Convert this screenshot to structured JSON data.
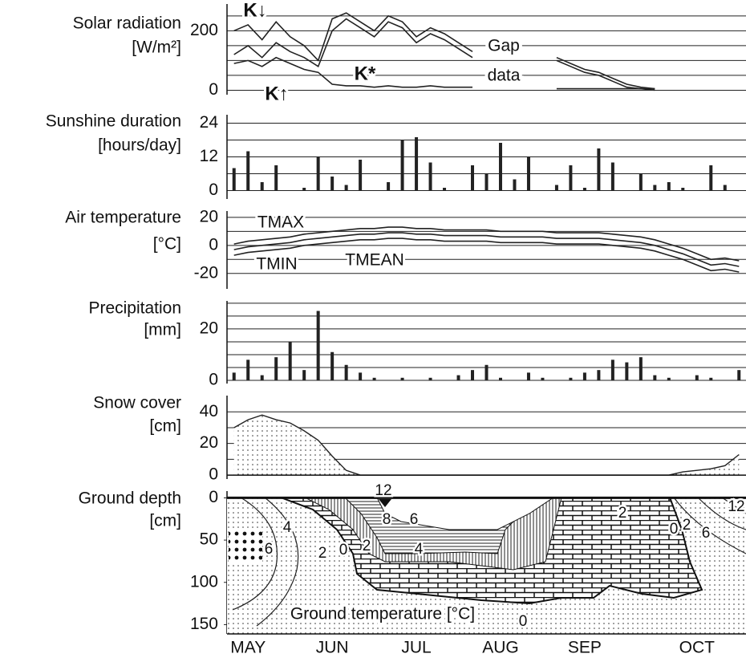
{
  "chart_data": [
    {
      "type": "line",
      "ylabel": [
        "Solar radiation",
        "[W/m²]"
      ],
      "ylim": [
        -15,
        290
      ],
      "yticks": [
        0,
        200
      ],
      "minor_grid": [
        50,
        100,
        150,
        250
      ],
      "annotations": [
        "Gap",
        "data"
      ],
      "series": [
        {
          "name": "K↓",
          "color": "#222222",
          "values": [
            200,
            220,
            170,
            230,
            180,
            150,
            100,
            240,
            260,
            230,
            200,
            250,
            230,
            180,
            210,
            190,
            160,
            130,
            null,
            null,
            null,
            null,
            null,
            110,
            90,
            70,
            60,
            40,
            20,
            10,
            5,
            null,
            null,
            null,
            null,
            null,
            null
          ]
        },
        {
          "name": "K*",
          "color": "#222222",
          "values": [
            120,
            150,
            110,
            160,
            130,
            110,
            80,
            200,
            240,
            210,
            180,
            230,
            210,
            160,
            190,
            170,
            140,
            110,
            null,
            null,
            null,
            null,
            null,
            100,
            80,
            60,
            50,
            30,
            10,
            5,
            0,
            null,
            null,
            null,
            null,
            null,
            null
          ]
        },
        {
          "name": "K↑",
          "color": "#222222",
          "values": [
            90,
            100,
            80,
            110,
            90,
            70,
            60,
            20,
            15,
            15,
            10,
            15,
            10,
            10,
            15,
            10,
            10,
            10,
            null,
            null,
            null,
            null,
            null,
            5,
            5,
            5,
            5,
            5,
            5,
            5,
            5,
            null,
            null,
            null,
            null,
            null,
            null
          ]
        }
      ]
    },
    {
      "type": "bar",
      "ylabel": [
        "Sunshine duration",
        "[hours/day]"
      ],
      "ylim": [
        -3,
        27
      ],
      "yticks": [
        0,
        12,
        24
      ],
      "minor_grid": [
        6,
        18
      ],
      "color": "#222222",
      "values": [
        8,
        14,
        3,
        9,
        0,
        1,
        12,
        5,
        2,
        11,
        0,
        3,
        18,
        19,
        10,
        1,
        0,
        9,
        6,
        17,
        4,
        12,
        0,
        2,
        9,
        1,
        15,
        10,
        0,
        6,
        2,
        3,
        1,
        0,
        9,
        2,
        0
      ]
    },
    {
      "type": "line",
      "ylabel": [
        "Air  temperature",
        "[°C]"
      ],
      "ylim": [
        -31,
        24.5
      ],
      "yticks": [
        20,
        0,
        -20
      ],
      "minor_grid": [
        10,
        -10
      ],
      "series": [
        {
          "name": "TMAX",
          "color": "#222222",
          "values": [
            1,
            3,
            4,
            5,
            6,
            8,
            9,
            10,
            11,
            12,
            12,
            13,
            13,
            12,
            12,
            11,
            11,
            11,
            11,
            10,
            10,
            10,
            10,
            9,
            9,
            9,
            9,
            8,
            7,
            6,
            4,
            1,
            -2,
            -6,
            -10,
            -9,
            -11
          ]
        },
        {
          "name": "TMIN",
          "color": "#222222",
          "values": [
            -7,
            -5,
            -4,
            -3,
            -2,
            0,
            1,
            2,
            3,
            4,
            4,
            5,
            5,
            4,
            4,
            3,
            3,
            3,
            3,
            2,
            2,
            2,
            2,
            1,
            1,
            1,
            1,
            0,
            -1,
            -2,
            -4,
            -7,
            -10,
            -14,
            -18,
            -17,
            -19
          ]
        },
        {
          "name": "TMEAN",
          "color": "#222222",
          "values": [
            -3,
            -1,
            0,
            1,
            2,
            4,
            5,
            6,
            7,
            8,
            8,
            9,
            9,
            8,
            8,
            7,
            7,
            7,
            7,
            6,
            6,
            6,
            6,
            5,
            5,
            5,
            5,
            4,
            3,
            2,
            0,
            -3,
            -6,
            -10,
            -14,
            -13,
            -15
          ]
        }
      ]
    },
    {
      "type": "bar",
      "ylabel": [
        "Precipitation",
        "[mm]"
      ],
      "ylim": [
        -1.25,
        30.9
      ],
      "yticks": [
        0,
        20
      ],
      "minor_grid": [
        5,
        10,
        15,
        25,
        30
      ],
      "color": "#222222",
      "values": [
        3,
        8,
        2,
        9,
        15,
        4,
        27,
        11,
        6,
        3,
        1,
        0,
        1,
        0,
        1,
        0,
        2,
        4,
        6,
        1,
        0,
        3,
        1,
        0,
        1,
        3,
        4,
        8,
        7,
        9,
        2,
        1,
        0,
        2,
        1,
        0,
        4
      ]
    },
    {
      "type": "area",
      "ylabel": [
        "Snow cover",
        "[cm]"
      ],
      "ylim": [
        -2.5,
        50.3
      ],
      "yticks": [
        0,
        20,
        40
      ],
      "minor_grid": [
        10,
        30
      ],
      "color": "#222222",
      "values": [
        30,
        35,
        38,
        35,
        33,
        28,
        22,
        12,
        3,
        0,
        0,
        0,
        0,
        0,
        0,
        0,
        0,
        0,
        0,
        0,
        0,
        0,
        0,
        0,
        0,
        0,
        0,
        0,
        0,
        0,
        0,
        0,
        2,
        3,
        4,
        6,
        13
      ]
    },
    {
      "type": "contour",
      "ylabel": [
        "Ground depth",
        "[cm]"
      ],
      "ylim": [
        -8,
        161
      ],
      "y_inverted": true,
      "yticks": [
        0,
        50,
        100,
        150
      ],
      "annotation": "Ground temperature  [°C]",
      "contour_labels": [
        12,
        8,
        6,
        4,
        2,
        0,
        2,
        4,
        6,
        0,
        2,
        0,
        2,
        6,
        12
      ],
      "categories": [
        null,
        "MAY",
        null,
        null,
        null,
        null,
        null,
        "JUN",
        null,
        null,
        null,
        null,
        null,
        "JUL",
        null,
        null,
        null,
        null,
        null,
        "AUG",
        null,
        null,
        null,
        null,
        null,
        "SEP",
        null,
        null,
        null,
        null,
        null,
        null,
        null,
        "OCT",
        null,
        null,
        null
      ]
    }
  ]
}
